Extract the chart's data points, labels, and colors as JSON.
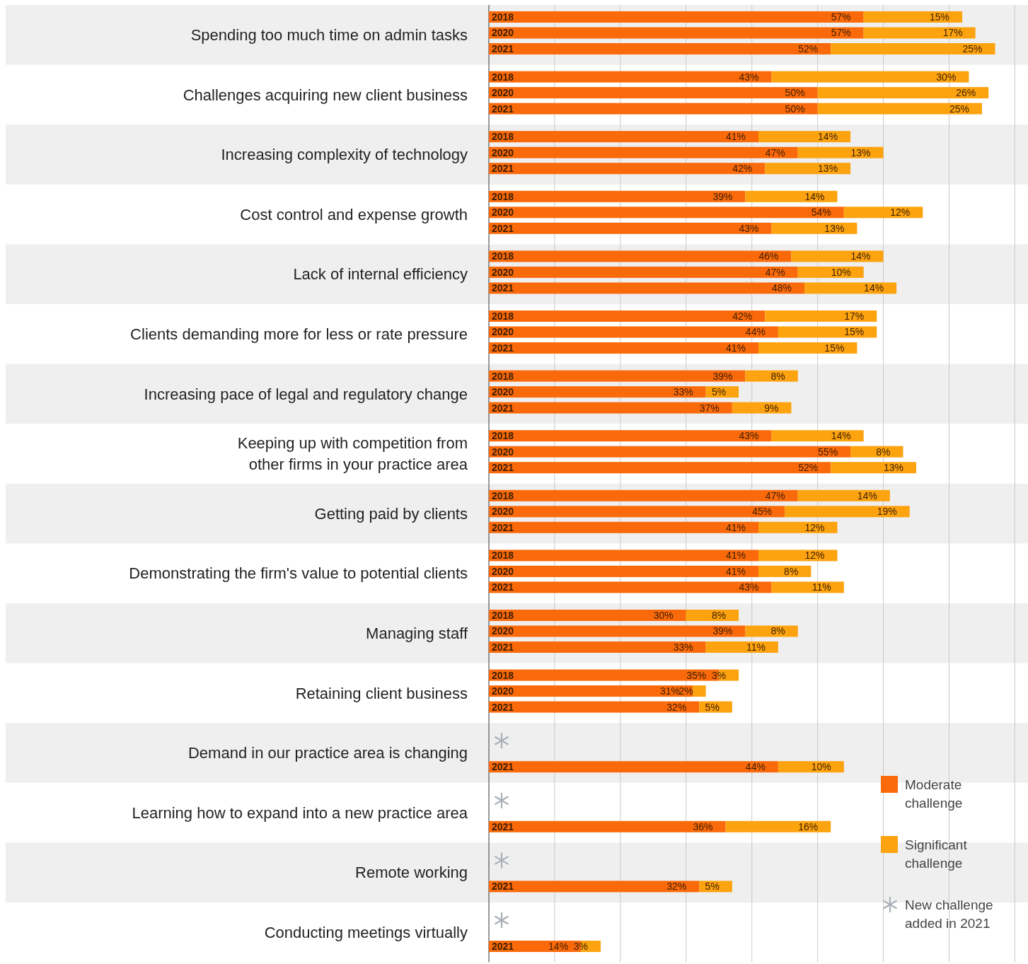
{
  "chart_data": [
    {
      "type": "bar",
      "orientation": "horizontal",
      "stacked": true,
      "title": "Spending too much time on admin tasks",
      "categories": [
        "2018",
        "2020",
        "2021"
      ],
      "series": [
        {
          "color": "#fb6a0a",
          "values": [
            57,
            57,
            52
          ],
          "value_labels": [
            "57%",
            "57%",
            "52%"
          ]
        },
        {
          "color": "#fda30f",
          "values": [
            15,
            17,
            25
          ],
          "value_labels": [
            "15%",
            "17%",
            "25%"
          ]
        }
      ],
      "xlim": [
        0,
        82
      ],
      "xticks": [
        {
          "value": 10,
          "label": null
        },
        {
          "value": 20,
          "label": null
        },
        {
          "value": 30,
          "label": null
        },
        {
          "value": 40,
          "label": null
        },
        {
          "value": 50,
          "label": null
        },
        {
          "value": 60,
          "label": null
        },
        {
          "value": 70,
          "label": null
        },
        {
          "value": 80,
          "label": null
        }
      ],
      "grid": "x",
      "tick_labels": "y"
    },
    {
      "type": "bar",
      "orientation": "horizontal",
      "stacked": true,
      "title": "Challenges acquiring new client business",
      "categories": [
        "2018",
        "2020",
        "2021"
      ],
      "series": [
        {
          "color": "#fb6a0a",
          "values": [
            43,
            50,
            50
          ],
          "value_labels": [
            "43%",
            "50%",
            "50%"
          ]
        },
        {
          "color": "#fda30f",
          "values": [
            30,
            26,
            25
          ],
          "value_labels": [
            "30%",
            "26%",
            "25%"
          ]
        }
      ],
      "xlim": [
        0,
        82
      ],
      "xticks": [
        {
          "value": 10,
          "label": null
        },
        {
          "value": 20,
          "label": null
        },
        {
          "value": 30,
          "label": null
        },
        {
          "value": 40,
          "label": null
        },
        {
          "value": 50,
          "label": null
        },
        {
          "value": 60,
          "label": null
        },
        {
          "value": 70,
          "label": null
        },
        {
          "value": 80,
          "label": null
        }
      ],
      "grid": "x",
      "tick_labels": "y"
    },
    {
      "type": "bar",
      "orientation": "horizontal",
      "stacked": true,
      "title": "Increasing complexity of technology",
      "categories": [
        "2018",
        "2020",
        "2021"
      ],
      "series": [
        {
          "color": "#fb6a0a",
          "values": [
            41,
            47,
            42
          ],
          "value_labels": [
            "41%",
            "47%",
            "42%"
          ]
        },
        {
          "color": "#fda30f",
          "values": [
            14,
            13,
            13
          ],
          "value_labels": [
            "14%",
            "13%",
            "13%"
          ]
        }
      ],
      "xlim": [
        0,
        82
      ],
      "xticks": [
        {
          "value": 10,
          "label": null
        },
        {
          "value": 20,
          "label": null
        },
        {
          "value": 30,
          "label": null
        },
        {
          "value": 40,
          "label": null
        },
        {
          "value": 50,
          "label": null
        },
        {
          "value": 60,
          "label": null
        },
        {
          "value": 70,
          "label": null
        },
        {
          "value": 80,
          "label": null
        }
      ],
      "grid": "x",
      "tick_labels": "y"
    },
    {
      "type": "bar",
      "orientation": "horizontal",
      "stacked": true,
      "title": "Cost control and expense growth",
      "categories": [
        "2018",
        "2020",
        "2021"
      ],
      "series": [
        {
          "color": "#fb6a0a",
          "values": [
            39,
            54,
            43
          ],
          "value_labels": [
            "39%",
            "54%",
            "43%"
          ]
        },
        {
          "color": "#fda30f",
          "values": [
            14,
            12,
            13
          ],
          "value_labels": [
            "14%",
            "12%",
            "13%"
          ]
        }
      ],
      "xlim": [
        0,
        82
      ],
      "xticks": [
        {
          "value": 10,
          "label": null
        },
        {
          "value": 20,
          "label": null
        },
        {
          "value": 30,
          "label": null
        },
        {
          "value": 40,
          "label": null
        },
        {
          "value": 50,
          "label": null
        },
        {
          "value": 60,
          "label": null
        },
        {
          "value": 70,
          "label": null
        },
        {
          "value": 80,
          "label": null
        }
      ],
      "grid": "x",
      "tick_labels": "y"
    },
    {
      "type": "bar",
      "orientation": "horizontal",
      "stacked": true,
      "title": "Lack of internal efficiency",
      "categories": [
        "2018",
        "2020",
        "2021"
      ],
      "series": [
        {
          "color": "#fb6a0a",
          "values": [
            46,
            47,
            48
          ],
          "value_labels": [
            "46%",
            "47%",
            "48%"
          ]
        },
        {
          "color": "#fda30f",
          "values": [
            14,
            10,
            14
          ],
          "value_labels": [
            "14%",
            "10%",
            "14%"
          ]
        }
      ],
      "xlim": [
        0,
        82
      ],
      "xticks": [
        {
          "value": 10,
          "label": null
        },
        {
          "value": 20,
          "label": null
        },
        {
          "value": 30,
          "label": null
        },
        {
          "value": 40,
          "label": null
        },
        {
          "value": 50,
          "label": null
        },
        {
          "value": 60,
          "label": null
        },
        {
          "value": 70,
          "label": null
        },
        {
          "value": 80,
          "label": null
        }
      ],
      "grid": "x",
      "tick_labels": "y"
    },
    {
      "type": "bar",
      "orientation": "horizontal",
      "stacked": true,
      "title": "Clients demanding more for less or rate pressure",
      "categories": [
        "2018",
        "2020",
        "2021"
      ],
      "series": [
        {
          "color": "#fb6a0a",
          "values": [
            42,
            44,
            41
          ],
          "value_labels": [
            "42%",
            "44%",
            "41%"
          ]
        },
        {
          "color": "#fda30f",
          "values": [
            17,
            15,
            15
          ],
          "value_labels": [
            "17%",
            "15%",
            "15%"
          ]
        }
      ],
      "xlim": [
        0,
        82
      ],
      "xticks": [
        {
          "value": 10,
          "label": null
        },
        {
          "value": 20,
          "label": null
        },
        {
          "value": 30,
          "label": null
        },
        {
          "value": 40,
          "label": null
        },
        {
          "value": 50,
          "label": null
        },
        {
          "value": 60,
          "label": null
        },
        {
          "value": 70,
          "label": null
        },
        {
          "value": 80,
          "label": null
        }
      ],
      "grid": "x",
      "tick_labels": "y"
    },
    {
      "type": "bar",
      "orientation": "horizontal",
      "stacked": true,
      "title": "Increasing pace of legal and regulatory change",
      "categories": [
        "2018",
        "2020",
        "2021"
      ],
      "series": [
        {
          "color": "#fb6a0a",
          "values": [
            39,
            33,
            37
          ],
          "value_labels": [
            "39%",
            "33%",
            "37%"
          ]
        },
        {
          "color": "#fda30f",
          "values": [
            8,
            5,
            9
          ],
          "value_labels": [
            "8%",
            "5%",
            "9%"
          ]
        }
      ],
      "xlim": [
        0,
        82
      ],
      "xticks": [
        {
          "value": 10,
          "label": null
        },
        {
          "value": 20,
          "label": null
        },
        {
          "value": 30,
          "label": null
        },
        {
          "value": 40,
          "label": null
        },
        {
          "value": 50,
          "label": null
        },
        {
          "value": 60,
          "label": null
        },
        {
          "value": 70,
          "label": null
        },
        {
          "value": 80,
          "label": null
        }
      ],
      "grid": "x",
      "tick_labels": "y"
    },
    {
      "type": "bar",
      "orientation": "horizontal",
      "stacked": true,
      "title": "Keeping up with competition from other firms in your practice area",
      "categories": [
        "2018",
        "2020",
        "2021"
      ],
      "series": [
        {
          "color": "#fb6a0a",
          "values": [
            43,
            55,
            52
          ],
          "value_labels": [
            "43%",
            "55%",
            "52%"
          ]
        },
        {
          "color": "#fda30f",
          "values": [
            14,
            8,
            13
          ],
          "value_labels": [
            "14%",
            "8%",
            "13%"
          ]
        }
      ],
      "xlim": [
        0,
        82
      ],
      "xticks": [
        {
          "value": 10,
          "label": null
        },
        {
          "value": 20,
          "label": null
        },
        {
          "value": 30,
          "label": null
        },
        {
          "value": 40,
          "label": null
        },
        {
          "value": 50,
          "label": null
        },
        {
          "value": 60,
          "label": null
        },
        {
          "value": 70,
          "label": null
        },
        {
          "value": 80,
          "label": null
        }
      ],
      "grid": "x",
      "tick_labels": "y"
    },
    {
      "type": "bar",
      "orientation": "horizontal",
      "stacked": true,
      "title": "Getting paid by clients",
      "categories": [
        "2018",
        "2020",
        "2021"
      ],
      "series": [
        {
          "color": "#fb6a0a",
          "values": [
            47,
            45,
            41
          ],
          "value_labels": [
            "47%",
            "45%",
            "41%"
          ]
        },
        {
          "color": "#fda30f",
          "values": [
            14,
            19,
            12
          ],
          "value_labels": [
            "14%",
            "19%",
            "12%"
          ]
        }
      ],
      "xlim": [
        0,
        82
      ],
      "xticks": [
        {
          "value": 10,
          "label": null
        },
        {
          "value": 20,
          "label": null
        },
        {
          "value": 30,
          "label": null
        },
        {
          "value": 40,
          "label": null
        },
        {
          "value": 50,
          "label": null
        },
        {
          "value": 60,
          "label": null
        },
        {
          "value": 70,
          "label": null
        },
        {
          "value": 80,
          "label": null
        }
      ],
      "grid": "x",
      "tick_labels": "y"
    },
    {
      "type": "bar",
      "orientation": "horizontal",
      "stacked": true,
      "title": "Demonstrating the firm's value to potential clients",
      "categories": [
        "2018",
        "2020",
        "2021"
      ],
      "series": [
        {
          "color": "#fb6a0a",
          "values": [
            41,
            41,
            43
          ],
          "value_labels": [
            "41%",
            "41%",
            "43%"
          ]
        },
        {
          "color": "#fda30f",
          "values": [
            12,
            8,
            11
          ],
          "value_labels": [
            "12%",
            "8%",
            "11%"
          ]
        }
      ],
      "xlim": [
        0,
        82
      ],
      "xticks": [
        {
          "value": 10,
          "label": null
        },
        {
          "value": 20,
          "label": null
        },
        {
          "value": 30,
          "label": null
        },
        {
          "value": 40,
          "label": null
        },
        {
          "value": 50,
          "label": null
        },
        {
          "value": 60,
          "label": null
        },
        {
          "value": 70,
          "label": null
        },
        {
          "value": 80,
          "label": null
        }
      ],
      "grid": "x",
      "tick_labels": "y"
    },
    {
      "type": "bar",
      "orientation": "horizontal",
      "stacked": true,
      "title": "Managing staff",
      "categories": [
        "2018",
        "2020",
        "2021"
      ],
      "series": [
        {
          "color": "#fb6a0a",
          "values": [
            30,
            39,
            33
          ],
          "value_labels": [
            "30%",
            "39%",
            "33%"
          ]
        },
        {
          "color": "#fda30f",
          "values": [
            8,
            8,
            11
          ],
          "value_labels": [
            "8%",
            "8%",
            "11%"
          ]
        }
      ],
      "xlim": [
        0,
        82
      ],
      "xticks": [
        {
          "value": 10,
          "label": null
        },
        {
          "value": 20,
          "label": null
        },
        {
          "value": 30,
          "label": null
        },
        {
          "value": 40,
          "label": null
        },
        {
          "value": 50,
          "label": null
        },
        {
          "value": 60,
          "label": null
        },
        {
          "value": 70,
          "label": null
        },
        {
          "value": 80,
          "label": null
        }
      ],
      "grid": "x",
      "tick_labels": "y"
    },
    {
      "type": "bar",
      "orientation": "horizontal",
      "stacked": true,
      "title": "Retaining client business",
      "categories": [
        "2018",
        "2020",
        "2021"
      ],
      "series": [
        {
          "color": "#fb6a0a",
          "values": [
            35,
            31,
            32
          ],
          "value_labels": [
            "35%",
            "31%",
            "32%"
          ]
        },
        {
          "color": "#fda30f",
          "values": [
            3,
            2,
            5
          ],
          "value_labels": [
            "3%",
            "2%",
            "5%"
          ]
        }
      ],
      "xlim": [
        0,
        82
      ],
      "xticks": [
        {
          "value": 10,
          "label": null
        },
        {
          "value": 20,
          "label": null
        },
        {
          "value": 30,
          "label": null
        },
        {
          "value": 40,
          "label": null
        },
        {
          "value": 50,
          "label": null
        },
        {
          "value": 60,
          "label": null
        },
        {
          "value": 70,
          "label": null
        },
        {
          "value": 80,
          "label": null
        }
      ],
      "grid": "x",
      "tick_labels": "y"
    },
    {
      "type": "bar",
      "orientation": "horizontal",
      "stacked": true,
      "title": "Demand in our practice area is changing",
      "categories": [
        "2021"
      ],
      "series": [
        {
          "color": "#fb6a0a",
          "values": [
            44
          ],
          "value_labels": [
            "44%"
          ]
        },
        {
          "color": "#fda30f",
          "values": [
            10
          ],
          "value_labels": [
            "10%"
          ]
        }
      ],
      "xlim": [
        0,
        82
      ],
      "xticks": [
        {
          "value": 10,
          "label": null
        },
        {
          "value": 20,
          "label": null
        },
        {
          "value": 30,
          "label": null
        },
        {
          "value": 40,
          "label": null
        },
        {
          "value": 50,
          "label": null
        },
        {
          "value": 60,
          "label": null
        },
        {
          "value": 70,
          "label": null
        },
        {
          "value": 80,
          "label": null
        }
      ],
      "grid": "x",
      "tick_labels": "y"
    },
    {
      "type": "bar",
      "orientation": "horizontal",
      "stacked": true,
      "title": "Learning how to expand into a new practice area",
      "categories": [
        "2021"
      ],
      "series": [
        {
          "name": "Moderate challenge",
          "color": "#fb6a0a",
          "values": [
            36
          ],
          "value_labels": [
            "36%"
          ]
        },
        {
          "name": "Significant challenge",
          "color": "#fda30f",
          "values": [
            16
          ],
          "value_labels": [
            "16%"
          ]
        }
      ],
      "xlim": [
        0,
        82
      ],
      "xticks": [
        {
          "value": 10,
          "label": null
        },
        {
          "value": 20,
          "label": null
        },
        {
          "value": 30,
          "label": null
        },
        {
          "value": 40,
          "label": null
        },
        {
          "value": 50,
          "label": null
        },
        {
          "value": 60,
          "label": null
        },
        {
          "value": 70,
          "label": null
        },
        {
          "value": 80,
          "label": null
        }
      ],
      "grid": "x",
      "tick_labels": "y",
      "legend": "right",
      "annotations": [
        "New challenge added in 2021"
      ]
    },
    {
      "type": "bar",
      "orientation": "horizontal",
      "stacked": true,
      "title": "Remote working",
      "categories": [
        "2021"
      ],
      "series": [
        {
          "color": "#fb6a0a",
          "values": [
            32
          ],
          "value_labels": [
            "32%"
          ]
        },
        {
          "color": "#fda30f",
          "values": [
            5
          ],
          "value_labels": [
            "5%"
          ]
        }
      ],
      "xlim": [
        0,
        82
      ],
      "xticks": [
        {
          "value": 10,
          "label": null
        },
        {
          "value": 20,
          "label": null
        },
        {
          "value": 30,
          "label": null
        },
        {
          "value": 40,
          "label": null
        },
        {
          "value": 50,
          "label": null
        },
        {
          "value": 60,
          "label": null
        },
        {
          "value": 70,
          "label": null
        },
        {
          "value": 80,
          "label": null
        }
      ],
      "grid": "x",
      "tick_labels": "y"
    },
    {
      "type": "bar",
      "orientation": "horizontal",
      "stacked": true,
      "title": "Conducting meetings virtually",
      "categories": [
        "2021"
      ],
      "series": [
        {
          "color": "#fb6a0a",
          "values": [
            14
          ],
          "value_labels": [
            "14%"
          ]
        },
        {
          "color": "#fda30f",
          "values": [
            3
          ],
          "value_labels": [
            "3%"
          ]
        }
      ],
      "xlim": [
        0,
        82
      ],
      "xticks": [
        {
          "value": 10,
          "label": null
        },
        {
          "value": 20,
          "label": null
        },
        {
          "value": 30,
          "label": null
        },
        {
          "value": 40,
          "label": null
        },
        {
          "value": 50,
          "label": null
        },
        {
          "value": 60,
          "label": null
        },
        {
          "value": 70,
          "label": null
        },
        {
          "value": 80,
          "label": null
        }
      ],
      "grid": "x",
      "tick_labels": "y"
    }
  ]
}
